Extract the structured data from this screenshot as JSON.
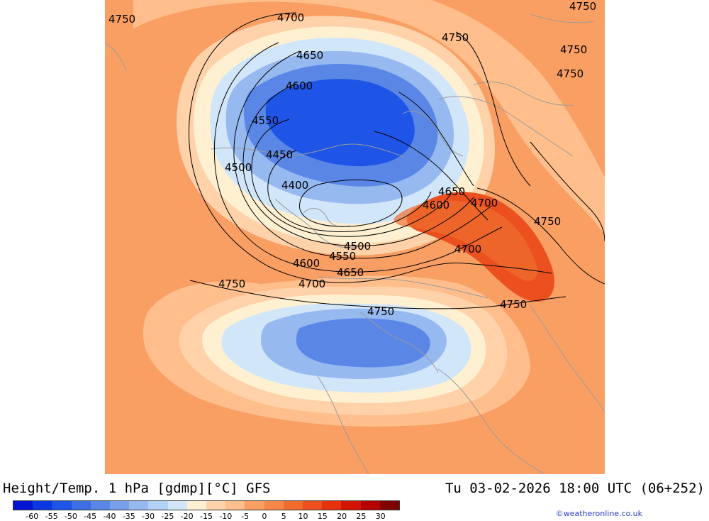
{
  "title": {
    "product": "Height/Temp. 1 hPa [gdmp][°C] GFS",
    "datetime": "Tu 03-02-2026 18:00 UTC (06+252)"
  },
  "credit": "©weatheronline.co.uk",
  "legend": {
    "labels": [
      "-60",
      "-55",
      "-50",
      "-45",
      "-40",
      "-35",
      "-30",
      "-25",
      "-20",
      "-15",
      "-10",
      "-5",
      "0",
      "5",
      "10",
      "15",
      "20",
      "25",
      "30"
    ],
    "colors": [
      "#0014d2",
      "#0a37e1",
      "#1e55e6",
      "#3c6ee6",
      "#5a87e6",
      "#78a0eb",
      "#96b9f0",
      "#b4d2f5",
      "#d2e6fa",
      "#fff0d2",
      "#ffd2aa",
      "#ffbe8c",
      "#fa9f64",
      "#f5874b",
      "#f06e2d",
      "#eb501e",
      "#e6320f",
      "#d21400",
      "#b40000",
      "#800000"
    ]
  },
  "contours": {
    "labels": [
      "4750",
      "4700",
      "4750",
      "4750",
      "4750",
      "4750",
      "4650",
      "4600",
      "4550",
      "4450",
      "4500",
      "4400",
      "4650",
      "4700",
      "4600",
      "4750",
      "4500",
      "4700",
      "4550",
      "4600",
      "4650",
      "4750",
      "4700",
      "4750",
      "4750"
    ]
  },
  "colors": {
    "warm_base": "#fa9f64",
    "warm_light": "#ffbe8c",
    "warm_pale": "#ffd2aa",
    "neutral": "#fff0d2",
    "cool_pale": "#d2e6fa",
    "cool_light": "#96b9f0",
    "cool_mid": "#5a87e6",
    "cool_deep": "#1e55e6",
    "hot": "#eb501e",
    "coast": "#9a9a9a",
    "contour": "#000000"
  }
}
